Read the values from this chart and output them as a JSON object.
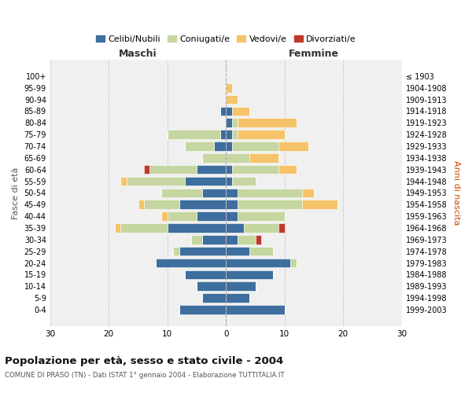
{
  "age_groups": [
    "0-4",
    "5-9",
    "10-14",
    "15-19",
    "20-24",
    "25-29",
    "30-34",
    "35-39",
    "40-44",
    "45-49",
    "50-54",
    "55-59",
    "60-64",
    "65-69",
    "70-74",
    "75-79",
    "80-84",
    "85-89",
    "90-94",
    "95-99",
    "100+"
  ],
  "birth_years": [
    "1999-2003",
    "1994-1998",
    "1989-1993",
    "1984-1988",
    "1979-1983",
    "1974-1978",
    "1969-1973",
    "1964-1968",
    "1959-1963",
    "1954-1958",
    "1949-1953",
    "1944-1948",
    "1939-1943",
    "1934-1938",
    "1929-1933",
    "1924-1928",
    "1919-1923",
    "1914-1918",
    "1909-1913",
    "1904-1908",
    "≤ 1903"
  ],
  "maschi": {
    "celibi": [
      8,
      4,
      5,
      7,
      12,
      8,
      4,
      10,
      5,
      8,
      4,
      7,
      5,
      0,
      2,
      1,
      0,
      1,
      0,
      0,
      0
    ],
    "coniugati": [
      0,
      0,
      0,
      0,
      0,
      1,
      2,
      8,
      5,
      6,
      7,
      10,
      8,
      4,
      5,
      9,
      0,
      0,
      0,
      0,
      0
    ],
    "vedovi": [
      0,
      0,
      0,
      0,
      0,
      0,
      0,
      1,
      1,
      1,
      0,
      1,
      0,
      0,
      0,
      0,
      0,
      0,
      0,
      0,
      0
    ],
    "divorziati": [
      0,
      0,
      0,
      0,
      0,
      0,
      0,
      0,
      0,
      0,
      0,
      0,
      1,
      0,
      0,
      0,
      0,
      0,
      0,
      0,
      0
    ]
  },
  "femmine": {
    "nubili": [
      10,
      4,
      5,
      8,
      11,
      4,
      2,
      3,
      2,
      2,
      2,
      1,
      1,
      0,
      1,
      1,
      1,
      1,
      0,
      0,
      0
    ],
    "coniugate": [
      0,
      0,
      0,
      0,
      1,
      4,
      3,
      6,
      8,
      11,
      11,
      4,
      8,
      4,
      8,
      1,
      1,
      0,
      0,
      0,
      0
    ],
    "vedove": [
      0,
      0,
      0,
      0,
      0,
      0,
      0,
      0,
      0,
      6,
      2,
      0,
      3,
      5,
      5,
      8,
      10,
      3,
      2,
      1,
      0
    ],
    "divorziate": [
      0,
      0,
      0,
      0,
      0,
      0,
      1,
      1,
      0,
      0,
      0,
      0,
      0,
      0,
      0,
      0,
      0,
      0,
      0,
      0,
      0
    ]
  },
  "colors": {
    "celibi": "#3d6e9e",
    "coniugati": "#c5d6a0",
    "vedovi": "#f5c36a",
    "divorziati": "#c0392b"
  },
  "xlim": 30,
  "title": "Popolazione per età, sesso e stato civile - 2004",
  "subtitle": "COMUNE DI PRASO (TN) - Dati ISTAT 1° gennaio 2004 - Elaborazione TUTTITALIA.IT",
  "legend_labels": [
    "Celibi/Nubili",
    "Coniugati/e",
    "Vedovi/e",
    "Divorziati/e"
  ],
  "xlabel_left": "Maschi",
  "xlabel_right": "Femmine",
  "ylabel_left": "Fasce di età",
  "ylabel_right": "Anni di nascita",
  "background_color": "#f0f0f0"
}
